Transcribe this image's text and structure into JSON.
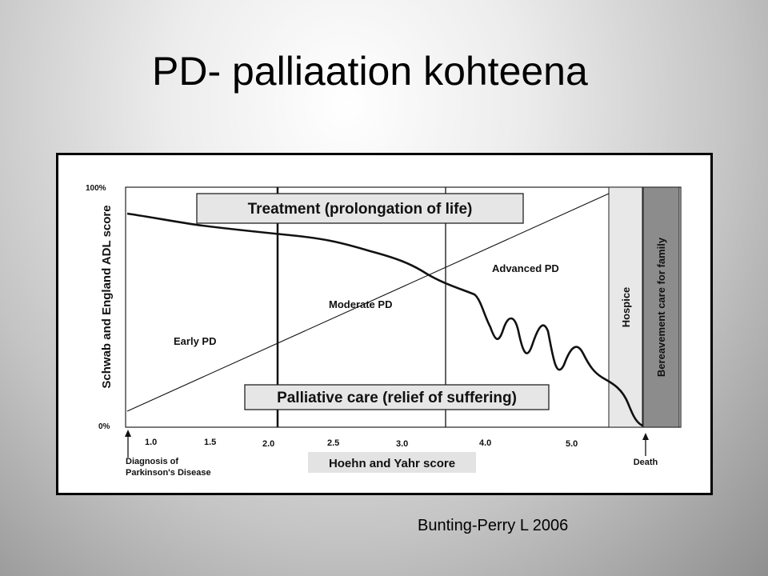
{
  "slide": {
    "title": "PD- palliaation kohteena",
    "citation": "Bunting-Perry L 2006"
  },
  "diagram": {
    "y_axis_label": "Schwab and England ADL score",
    "y_ticks": [
      "100%",
      "0%"
    ],
    "x_axis_label": "Hoehn and Yahr score",
    "x_ticks": [
      "1.0",
      "1.5",
      "2.0",
      "2.5",
      "3.0",
      "4.0",
      "5.0"
    ],
    "start_label_line1": "Diagnosis of",
    "start_label_line2": "Parkinson's Disease",
    "end_label": "Death",
    "treatment_box": "Treatment (prolongation of life)",
    "palliative_box": "Palliative care (relief of suffering)",
    "stages": [
      "Early PD",
      "Moderate PD",
      "Advanced PD"
    ],
    "hospice_label": "Hospice",
    "bereavement_label": "Bereavement care for family",
    "colors": {
      "hospice_fill": "#e8e8e8",
      "bereavement_fill": "#8c8c8c",
      "label_box_fill": "#e6e6e6",
      "line": "#111111"
    }
  }
}
